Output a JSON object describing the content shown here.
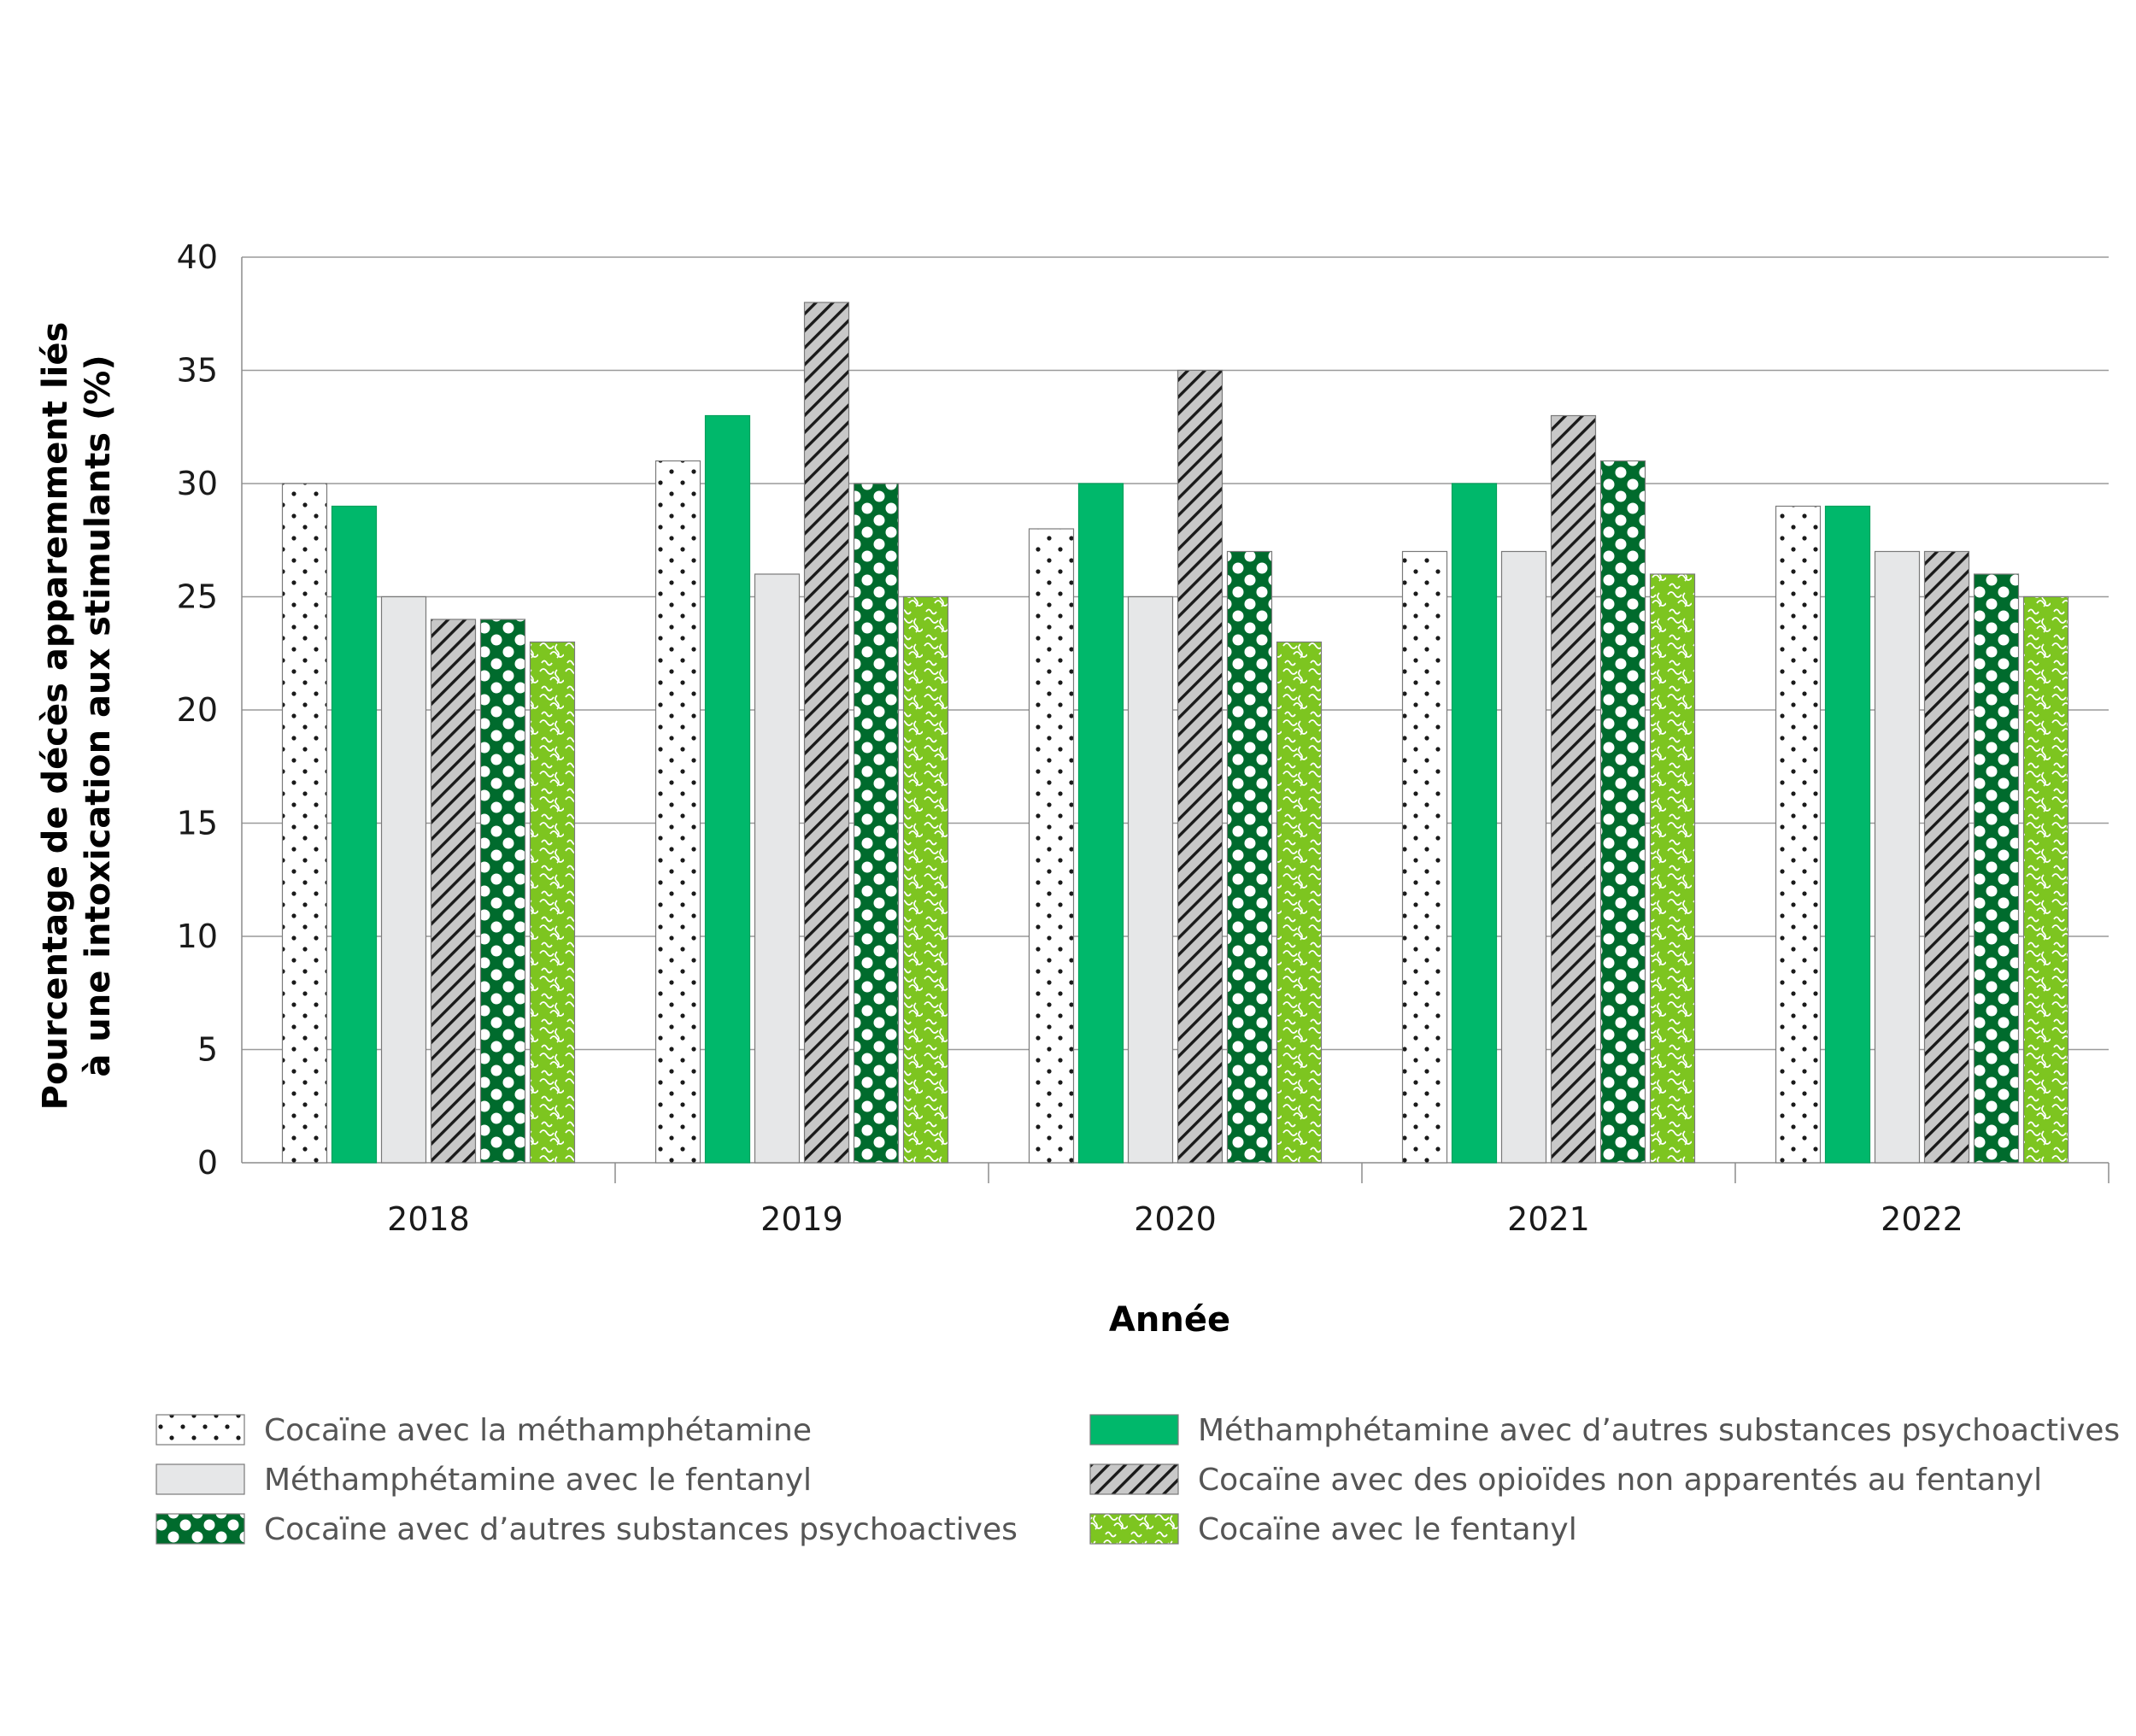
{
  "chart_data": {
    "type": "bar",
    "categories": [
      "2018",
      "2019",
      "2020",
      "2021",
      "2022"
    ],
    "series": [
      {
        "name": "Cocaïne avec la méthamphétamine",
        "values": [
          30,
          31,
          28,
          27,
          29
        ],
        "pattern": "dots",
        "color": "#ffffff",
        "fg": "#1a1a1a"
      },
      {
        "name": "Méthamphétamine avec d’autres substances psychoactives",
        "values": [
          29,
          33,
          30,
          30,
          29
        ],
        "pattern": "solid",
        "color": "#00b86b",
        "fg": "#00b86b"
      },
      {
        "name": "Méthamphétamine avec le fentanyl",
        "values": [
          25,
          26,
          25,
          27,
          27
        ],
        "pattern": "solid",
        "color": "#e6e7e8",
        "fg": "#e6e7e8"
      },
      {
        "name": "Cocaïne avec des opioïdes non apparentés au fentanyl",
        "values": [
          24,
          38,
          35,
          33,
          27
        ],
        "pattern": "hatch",
        "color": "#c8c8c8",
        "fg": "#1a1a1a"
      },
      {
        "name": "Cocaïne avec d’autres substances psychoactives",
        "values": [
          24,
          30,
          27,
          31,
          26
        ],
        "pattern": "bigdots",
        "color": "#006b2d",
        "fg": "#ffffff"
      },
      {
        "name": "Cocaïne avec le fentanyl",
        "values": [
          23,
          25,
          23,
          26,
          25
        ],
        "pattern": "squiggle",
        "color": "#7dc520",
        "fg": "#ffffff"
      }
    ],
    "ylabel_line1": "Pourcentage de décès apparemment liés",
    "ylabel_line2": "à une intoxication aux stimulants  (%)",
    "xlabel": "Année",
    "ylim": [
      0,
      40
    ],
    "yticks": [
      "0",
      "5",
      "10",
      "15",
      "20",
      "25",
      "30",
      "35",
      "40"
    ],
    "grid": true,
    "legend_placement": "bottom",
    "legend_order": [
      0,
      1,
      2,
      3,
      4,
      5
    ]
  }
}
